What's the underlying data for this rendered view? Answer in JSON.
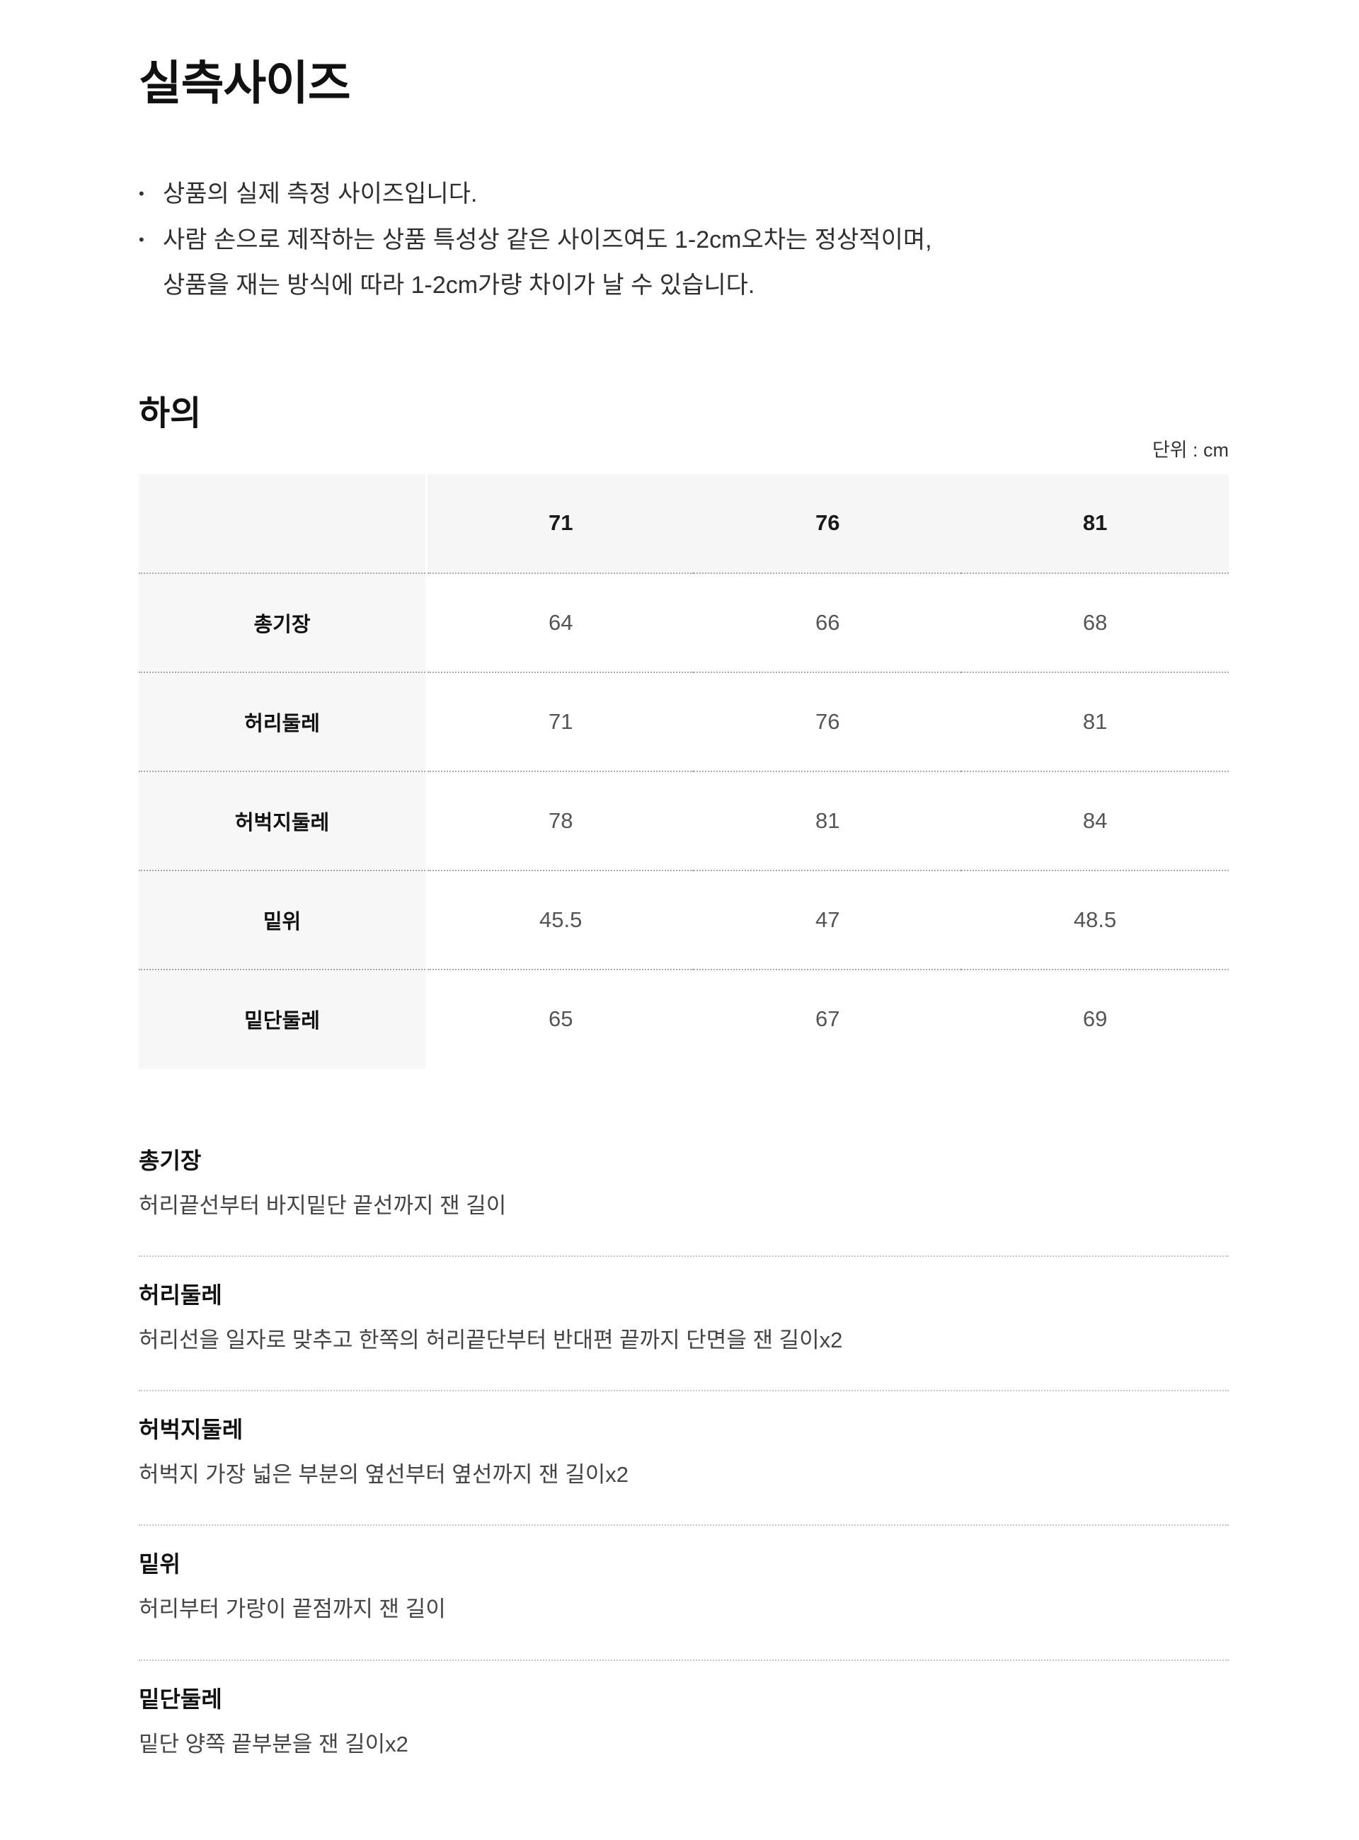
{
  "page": {
    "title": "실측사이즈"
  },
  "notes": {
    "lines": [
      {
        "bullet": "•",
        "text": "상품의 실제 측정 사이즈입니다."
      },
      {
        "bullet": "•",
        "text": "사람 손으로 제작하는 상품 특성상 같은 사이즈여도 1-2cm오차는 정상적이며,"
      },
      {
        "bullet": "",
        "text": "상품을 재는 방식에 따라 1-2cm가량 차이가 날 수 있습니다."
      }
    ]
  },
  "section": {
    "heading": "하의",
    "unit_label": "단위 : cm",
    "table": {
      "size_columns": [
        "71",
        "76",
        "81"
      ],
      "rows": [
        {
          "label": "총기장",
          "values": [
            "64",
            "66",
            "68"
          ]
        },
        {
          "label": "허리둘레",
          "values": [
            "71",
            "76",
            "81"
          ]
        },
        {
          "label": "허벅지둘레",
          "values": [
            "78",
            "81",
            "84"
          ]
        },
        {
          "label": "밑위",
          "values": [
            "45.5",
            "47",
            "48.5"
          ]
        },
        {
          "label": "밑단둘레",
          "values": [
            "65",
            "67",
            "69"
          ]
        }
      ]
    }
  },
  "definitions": [
    {
      "term": "총기장",
      "description": "허리끝선부터 바지밑단 끝선까지 잰 길이"
    },
    {
      "term": "허리둘레",
      "description": "허리선을 일자로 맞추고 한쪽의 허리끝단부터 반대편 끝까지 단면을 잰 길이x2"
    },
    {
      "term": "허벅지둘레",
      "description": "허벅지 가장 넓은 부분의 옆선부터 옆선까지 잰 길이x2"
    },
    {
      "term": "밑위",
      "description": "허리부터 가랑이 끝점까지 잰 길이"
    },
    {
      "term": "밑단둘레",
      "description": "밑단 양쪽 끝부분을 잰 길이x2"
    }
  ],
  "colors": {
    "table_header_bg": "#f6f6f6",
    "row_label_bg": "#f7f7f7",
    "value_text": "#555555",
    "table_divider": "#a9a9a9",
    "definition_divider": "#c5c5c5"
  }
}
